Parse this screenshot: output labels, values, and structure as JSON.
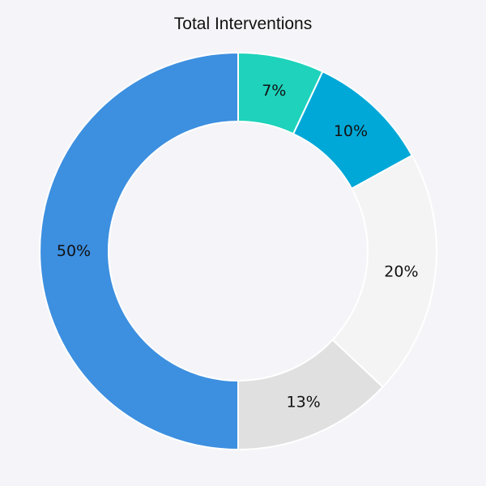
{
  "chart_data": {
    "type": "pie",
    "title": "Total Interventions",
    "donut": true,
    "legend": "none",
    "slices": [
      {
        "label": "7%",
        "value": 7,
        "color": "#1ed2bb"
      },
      {
        "label": "10%",
        "value": 10,
        "color": "#00a8d8"
      },
      {
        "label": "20%",
        "value": 20,
        "color": "#f4f4f4"
      },
      {
        "label": "13%",
        "value": 13,
        "color": "#e0e0e0"
      },
      {
        "label": "50%",
        "value": 50,
        "color": "#3d8fe0"
      }
    ]
  }
}
